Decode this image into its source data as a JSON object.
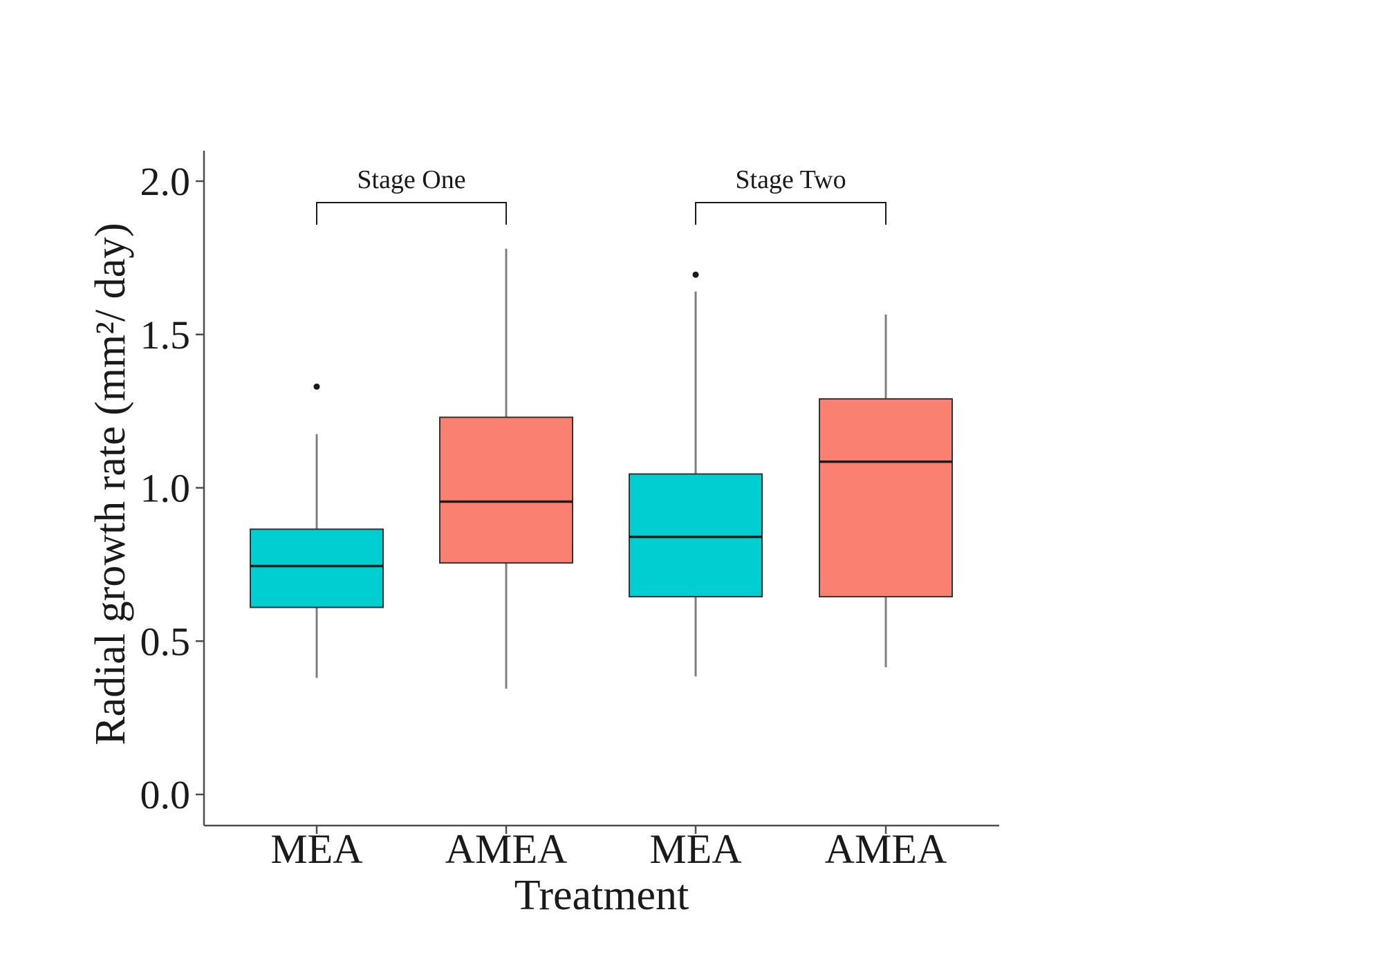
{
  "chart_data": {
    "type": "box",
    "title": "",
    "xlabel": "Treatment",
    "ylabel": "Radial growth rate (mm²/ day)",
    "ylim": [
      -0.1,
      2.1
    ],
    "yticks": [
      "0.0",
      "0.5",
      "1.0",
      "1.5",
      "2.0"
    ],
    "ytick_values": [
      0.0,
      0.5,
      1.0,
      1.5,
      2.0
    ],
    "categories": [
      "MEA",
      "AMEA",
      "MEA",
      "AMEA"
    ],
    "groups": [
      {
        "label": "Stage One",
        "members": [
          0,
          1
        ]
      },
      {
        "label": "Stage Two",
        "members": [
          2,
          3
        ]
      }
    ],
    "grid": false,
    "boxes": [
      {
        "category": "MEA",
        "group": "Stage One",
        "whisker_low": 0.38,
        "q1": 0.61,
        "median": 0.745,
        "q3": 0.865,
        "whisker_high": 1.175,
        "outliers": [
          1.33
        ],
        "color": "#00CED1"
      },
      {
        "category": "AMEA",
        "group": "Stage One",
        "whisker_low": 0.345,
        "q1": 0.755,
        "median": 0.955,
        "q3": 1.23,
        "whisker_high": 1.78,
        "outliers": [],
        "color": "#FA8072"
      },
      {
        "category": "MEA",
        "group": "Stage Two",
        "whisker_low": 0.385,
        "q1": 0.645,
        "median": 0.84,
        "q3": 1.045,
        "whisker_high": 1.64,
        "outliers": [
          1.695
        ],
        "color": "#00CED1"
      },
      {
        "category": "AMEA",
        "group": "Stage Two",
        "whisker_low": 0.415,
        "q1": 0.645,
        "median": 1.085,
        "q3": 1.29,
        "whisker_high": 1.565,
        "outliers": [],
        "color": "#FA8072"
      }
    ]
  }
}
